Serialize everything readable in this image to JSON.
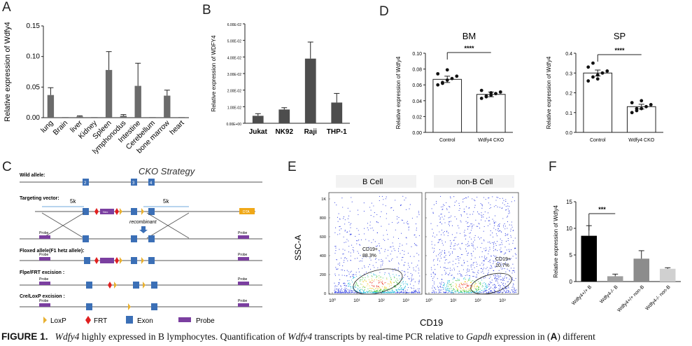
{
  "panels": {
    "A": "A",
    "B": "B",
    "C": "C",
    "D": "D",
    "E": "E",
    "F": "F"
  },
  "chart_data": [
    {
      "panel": "A",
      "type": "bar",
      "ylabel": "Relative expression of Wdfy4",
      "categories": [
        "lung",
        "Brain",
        "liver",
        "Kidney",
        "Spleen",
        "lymphonodus",
        "Intestine",
        "Cerebellum",
        "bone marrow",
        "heart"
      ],
      "values": [
        0.037,
        0.001,
        0.002,
        0.001,
        0.078,
        0.003,
        0.052,
        0.001,
        0.036,
        0.001
      ],
      "errors": [
        0.012,
        0.0,
        0.001,
        0.0,
        0.03,
        0.002,
        0.037,
        0.0,
        0.009,
        0.0
      ],
      "yticks": [
        "0.00",
        "0.05",
        "0.10",
        "0.15"
      ],
      "ylim": [
        0,
        0.15
      ]
    },
    {
      "panel": "B",
      "type": "bar",
      "ylabel": "Relative expression of WDFY4",
      "categories": [
        "Jukat",
        "NK92",
        "Raji",
        "THP-1"
      ],
      "values": [
        0.0045,
        0.0083,
        0.039,
        0.0125
      ],
      "errors": [
        0.0013,
        0.0011,
        0.01,
        0.0055
      ],
      "yticks": [
        "0.00E+00",
        "1.00E-02",
        "2.00E-02",
        "3.00E-02",
        "4.00E-02",
        "5.00E-02",
        "6.00E-02"
      ],
      "ylim": [
        0,
        0.06
      ]
    },
    {
      "panel": "D1",
      "type": "bar",
      "title": "BM",
      "ylabel": "Relative expression of Wdfy4",
      "categories": [
        "Control",
        "Wdfy4 CKO"
      ],
      "values": [
        0.067,
        0.048
      ],
      "errors": [
        0.004,
        0.003
      ],
      "points": [
        [
          0.06,
          0.063,
          0.066,
          0.068,
          0.071,
          0.074,
          0.062,
          0.079
        ],
        [
          0.043,
          0.045,
          0.047,
          0.049,
          0.051,
          0.053,
          0.046,
          0.05
        ]
      ],
      "significance": "****",
      "yticks": [
        "0.00",
        "0.02",
        "0.04",
        "0.06",
        "0.08",
        "0.10"
      ],
      "ylim": [
        0,
        0.1
      ]
    },
    {
      "panel": "D2",
      "type": "bar",
      "title": "SP",
      "ylabel": "Relative expression of Wdfy4",
      "categories": [
        "Control",
        "Wdfy4 CKO"
      ],
      "values": [
        0.3,
        0.13
      ],
      "errors": [
        0.015,
        0.012
      ],
      "points": [
        [
          0.26,
          0.28,
          0.29,
          0.3,
          0.31,
          0.33,
          0.35,
          0.27
        ],
        [
          0.1,
          0.11,
          0.12,
          0.13,
          0.14,
          0.15,
          0.12,
          0.16
        ]
      ],
      "significance": "****",
      "yticks": [
        "0.0",
        "0.1",
        "0.2",
        "0.3",
        "0.4"
      ],
      "ylim": [
        0,
        0.4
      ]
    },
    {
      "panel": "F",
      "type": "bar",
      "ylabel": "Relative expression of Wdfy4",
      "categories": [
        "Wdfy4+/+ B",
        "Wdfy4-/- B",
        "Wdfy4+/+ non-B",
        "Wdfy4-/- non-B"
      ],
      "values": [
        8.6,
        1.0,
        4.3,
        2.4
      ],
      "errors": [
        1.9,
        0.4,
        1.5,
        0.2
      ],
      "colors": [
        "#000000",
        "#9e9e9e",
        "#8c8c8c",
        "#d0d0d0"
      ],
      "significance": "***",
      "yticks": [
        "0",
        "5",
        "10",
        "15"
      ],
      "ylim": [
        0,
        15
      ]
    }
  ],
  "strategy": {
    "title": "CKO Strategy",
    "wild_allele": "Wild allele:",
    "targeting_vector": "Targeting vector:",
    "floxed_allele": "Floxed allele(F1 hetz allele):",
    "flpe_excision": "Flpe/FRT excision :",
    "cre_excision": "Cre/LoxP excision :",
    "left_arm": "5k",
    "right_arm": "5k",
    "recombinant": "recombinant",
    "probe": "Probe",
    "neo": "Neo",
    "dta": "DTA",
    "exon2": "2",
    "exon3": "3",
    "exon4": "4",
    "legend": {
      "loxp": "LoxP",
      "frt": "FRT",
      "exon": "Exon",
      "probe": "Probe"
    }
  },
  "flow": {
    "ylabel": "SSC-A",
    "xlabel": "CD19",
    "b_cell_title": "B Cell",
    "nonb_cell_title": "non-B Cell",
    "b_gate_label": "CD19+",
    "b_gate_value": "88.3%",
    "nonb_gate_label": "CD19+",
    "nonb_gate_value": "10.7%",
    "yticks": [
      "1K",
      "800",
      "600",
      "400",
      "200",
      "0"
    ],
    "xticks": [
      "10⁰",
      "10¹",
      "10²",
      "10³"
    ]
  },
  "caption": {
    "label": "FIGURE 1.",
    "gene": "Wdfy4",
    "text1": " highly expressed in B lymphocytes. Quantification of ",
    "gene2": "Wdfy4",
    "text2": " transcripts by real-time PCR relative to ",
    "gene3": "Gapdh",
    "text3": " expression in (",
    "panel": "A",
    "text4": ") different"
  }
}
